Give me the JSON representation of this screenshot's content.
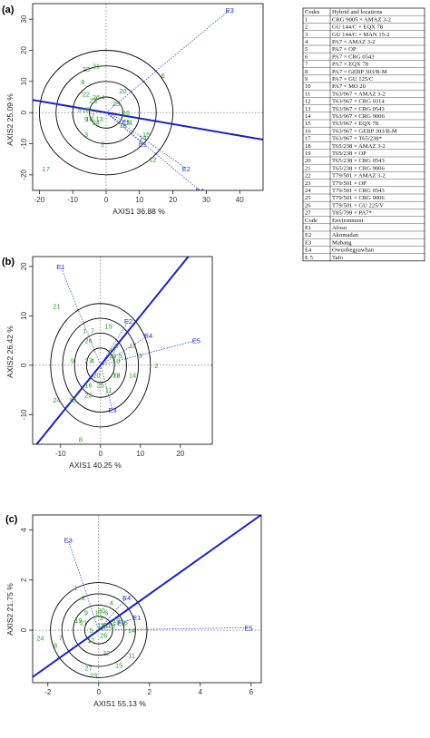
{
  "chart_data": [
    {
      "type": "scatter",
      "panel_label": "(a)",
      "xlabel": "AXIS1 36.88 %",
      "ylabel": "AXIS2 25.09 %",
      "xlim": [
        -22,
        47
      ],
      "ylim": [
        -25,
        35
      ],
      "xticks": [
        "-20",
        "-10",
        "0",
        "10",
        "20",
        "30",
        "40"
      ],
      "yticks": [
        "-20",
        "-10",
        "0",
        "10",
        "20",
        "30"
      ],
      "circle_radii": [
        5,
        10,
        15,
        20
      ],
      "axis_line": {
        "slope": -0.185
      },
      "genotypes": [
        {
          "label": "1",
          "x": -3,
          "y": 4
        },
        {
          "label": "2",
          "x": -1,
          "y": -10
        },
        {
          "label": "3",
          "x": -6,
          "y": -7
        },
        {
          "label": "4",
          "x": -1,
          "y": 5
        },
        {
          "label": "5",
          "x": -8,
          "y": 1
        },
        {
          "label": "6",
          "x": 17,
          "y": 12
        },
        {
          "label": "7",
          "x": -4,
          "y": -1
        },
        {
          "label": "8",
          "x": -7,
          "y": 10
        },
        {
          "label": "9",
          "x": -6,
          "y": -2
        },
        {
          "label": "10",
          "x": -5,
          "y": -2
        },
        {
          "label": "11",
          "x": 7,
          "y": -3
        },
        {
          "label": "12",
          "x": 14,
          "y": -15
        },
        {
          "label": "13",
          "x": -2,
          "y": -2
        },
        {
          "label": "14",
          "x": 11,
          "y": -8
        },
        {
          "label": "15",
          "x": 12,
          "y": -7
        },
        {
          "label": "16",
          "x": 6,
          "y": 0
        },
        {
          "label": "17",
          "x": -18,
          "y": -18
        },
        {
          "label": "18",
          "x": -6,
          "y": 1
        },
        {
          "label": "19",
          "x": 5,
          "y": -4
        },
        {
          "label": "20",
          "x": 5,
          "y": 7
        },
        {
          "label": "21",
          "x": -3,
          "y": 15
        },
        {
          "label": "22",
          "x": -6,
          "y": 6
        },
        {
          "label": "23",
          "x": -6,
          "y": 14
        },
        {
          "label": "24",
          "x": -3,
          "y": -3
        },
        {
          "label": "25",
          "x": 3,
          "y": 3
        },
        {
          "label": "26",
          "x": -3,
          "y": 5
        },
        {
          "label": "27",
          "x": -4,
          "y": 4
        }
      ],
      "environments": [
        {
          "label": "E1",
          "x": 11,
          "y": -10
        },
        {
          "label": "E2",
          "x": 24,
          "y": -18
        },
        {
          "label": "E3",
          "x": 37,
          "y": 33
        },
        {
          "label": "E4",
          "x": 28,
          "y": -25
        },
        {
          "label": "E5",
          "x": 6,
          "y": -3
        }
      ]
    },
    {
      "type": "scatter",
      "panel_label": "(b)",
      "xlabel": "AXIS1 40.25 %",
      "ylabel": "AXIS2 26.42 %",
      "xlim": [
        -17,
        28
      ],
      "ylim": [
        -16,
        22
      ],
      "xticks": [
        "-10",
        "0",
        "10",
        "20"
      ],
      "yticks": [
        "-10",
        "0",
        "10",
        "20"
      ],
      "circle_radii": [
        3.5,
        6.5,
        9.5,
        12.5
      ],
      "axis_line": {
        "slope": 1.0
      },
      "genotypes": [
        {
          "label": "1",
          "x": -4,
          "y": 7
        },
        {
          "label": "2",
          "x": 14,
          "y": 0
        },
        {
          "label": "3",
          "x": 10,
          "y": 2
        },
        {
          "label": "4",
          "x": -2,
          "y": 1
        },
        {
          "label": "5",
          "x": 5,
          "y": 2
        },
        {
          "label": "6",
          "x": 4,
          "y": 4
        },
        {
          "label": "7",
          "x": -2,
          "y": 7
        },
        {
          "label": "8",
          "x": -5,
          "y": -15
        },
        {
          "label": "9",
          "x": -7,
          "y": 1
        },
        {
          "label": "10",
          "x": -7,
          "y": -7
        },
        {
          "label": "11",
          "x": 2,
          "y": -5
        },
        {
          "label": "12",
          "x": 8,
          "y": 4
        },
        {
          "label": "13",
          "x": 4,
          "y": 1
        },
        {
          "label": "14",
          "x": 8,
          "y": -2
        },
        {
          "label": "15",
          "x": 2,
          "y": 8
        },
        {
          "label": "16",
          "x": -3,
          "y": -4
        },
        {
          "label": "17",
          "x": 3,
          "y": 3
        },
        {
          "label": "18",
          "x": 4,
          "y": -2
        },
        {
          "label": "19",
          "x": 3,
          "y": 2
        },
        {
          "label": "20",
          "x": -1,
          "y": -2
        },
        {
          "label": "21",
          "x": -11,
          "y": 12
        },
        {
          "label": "22",
          "x": 4,
          "y": -2
        },
        {
          "label": "23",
          "x": -3,
          "y": -6
        },
        {
          "label": "24",
          "x": -11,
          "y": -7
        },
        {
          "label": "25",
          "x": 0,
          "y": -4
        },
        {
          "label": "26",
          "x": -3,
          "y": 5
        },
        {
          "label": "27",
          "x": -3,
          "y": 1
        }
      ],
      "environments": [
        {
          "label": "E1",
          "x": -10,
          "y": 20
        },
        {
          "label": "E2",
          "x": 7,
          "y": 9
        },
        {
          "label": "E3",
          "x": 3,
          "y": -9
        },
        {
          "label": "E4",
          "x": 12,
          "y": 6
        },
        {
          "label": "E5",
          "x": 24,
          "y": 5
        }
      ]
    },
    {
      "type": "scatter",
      "panel_label": "(c)",
      "xlabel": "AXIS1 55.13 %",
      "ylabel": "AXIS2 21.75 %",
      "xlim": [
        -2.6,
        6.4
      ],
      "ylim": [
        -2.1,
        4.6
      ],
      "xticks": [
        "-2",
        "0",
        "2",
        "4",
        "6"
      ],
      "yticks": [
        "0",
        "2",
        "4"
      ],
      "circle_radii": [
        0.55,
        1.0,
        1.45,
        1.9
      ],
      "axis_line": {
        "slope": 0.72
      },
      "genotypes": [
        {
          "label": "1",
          "x": -0.9,
          "y": 1.7
        },
        {
          "label": "2",
          "x": -0.6,
          "y": 1.3
        },
        {
          "label": "3",
          "x": 0.1,
          "y": 0.5
        },
        {
          "label": "4",
          "x": 0.5,
          "y": 1.1
        },
        {
          "label": "5",
          "x": -0.3,
          "y": 0
        },
        {
          "label": "6",
          "x": 0.3,
          "y": 0.7
        },
        {
          "label": "7",
          "x": -1.5,
          "y": -0.3
        },
        {
          "label": "8",
          "x": -1.7,
          "y": -0.6
        },
        {
          "label": "9",
          "x": -0.5,
          "y": 0.7
        },
        {
          "label": "10",
          "x": 0.7,
          "y": 0.4
        },
        {
          "label": "11",
          "x": 1.3,
          "y": -1
        },
        {
          "label": "12",
          "x": -0.3,
          "y": -0.4
        },
        {
          "label": "13",
          "x": 0.1,
          "y": 0.2
        },
        {
          "label": "14",
          "x": 1.3,
          "y": 0
        },
        {
          "label": "15",
          "x": 0.8,
          "y": -1.4
        },
        {
          "label": "16",
          "x": 1,
          "y": 0.3
        },
        {
          "label": "17",
          "x": 0,
          "y": 0.7
        },
        {
          "label": "18",
          "x": 0.5,
          "y": 0.2
        },
        {
          "label": "19",
          "x": -0.8,
          "y": 0.4
        },
        {
          "label": "20",
          "x": 0.1,
          "y": 0.8
        },
        {
          "label": "21",
          "x": -0.6,
          "y": 0.3
        },
        {
          "label": "22",
          "x": 0.3,
          "y": -0.9
        },
        {
          "label": "23",
          "x": -0.2,
          "y": -1.8
        },
        {
          "label": "24",
          "x": -2.3,
          "y": -0.3
        },
        {
          "label": "25",
          "x": 0.2,
          "y": 0.2
        },
        {
          "label": "26",
          "x": 0.2,
          "y": -0.2
        },
        {
          "label": "27",
          "x": -0.4,
          "y": -1.5
        }
      ],
      "environments": [
        {
          "label": "E1",
          "x": 1.5,
          "y": 0.5
        },
        {
          "label": "E2",
          "x": 0.9,
          "y": 0.3
        },
        {
          "label": "E3",
          "x": -1.2,
          "y": 3.6
        },
        {
          "label": "E4",
          "x": 1.1,
          "y": 1.3
        },
        {
          "label": "E5",
          "x": 5.9,
          "y": 0.1
        }
      ]
    }
  ],
  "legend_table": {
    "header": [
      "Codes",
      "Hybrid and locations"
    ],
    "rows": [
      [
        "1",
        "CRG 9005 × AMAZ 3-2"
      ],
      [
        "2",
        "GU 144/C × EQX 78"
      ],
      [
        "3",
        "GU 144/C × MAN 15-2"
      ],
      [
        "4",
        "PA7 × AMAZ 3-2"
      ],
      [
        "5",
        "PA7 × OP"
      ],
      [
        "6",
        "PA7 × CRG 0543"
      ],
      [
        "7",
        "PA7 × EQX 78"
      ],
      [
        "8",
        "PA7 × GEBP 303/B-M"
      ],
      [
        "9",
        "PA7 × GU 125/C"
      ],
      [
        "10",
        "PA7 × MO 20"
      ],
      [
        "11",
        "T63/967 × AMAZ 3-2"
      ],
      [
        "12",
        "T63/967 × CRG 0314"
      ],
      [
        "13",
        "T63/967 × CRG 0543"
      ],
      [
        "14",
        "T63/967 × CRG 9006"
      ],
      [
        "15",
        "T63/967 × EQX 78"
      ],
      [
        "16",
        "T63/967 × GEBP 303/B-M"
      ],
      [
        "17",
        "T63/967 × T65/238*"
      ],
      [
        "18",
        "T65/238 × AMAZ 3-2"
      ],
      [
        "19",
        "T65/238 × OP"
      ],
      [
        "20",
        "T65/238 × CRG 0543"
      ],
      [
        "21",
        "T65/238 × CRG 9006"
      ],
      [
        "22",
        "T79/501 × AMAZ 3-2"
      ],
      [
        "23",
        "T79/501 × OP"
      ],
      [
        "24",
        "T79/501 × CRG 0543"
      ],
      [
        "25",
        "T79/501 × CRG 9006"
      ],
      [
        "26",
        "T79/501 × GU 225/V"
      ],
      [
        "27",
        "T85/799 × PA7*"
      ]
    ],
    "env_header": [
      "Code",
      "Environment"
    ],
    "env_rows": [
      [
        "E1",
        "Afosu"
      ],
      [
        "E2",
        "Akomadan"
      ],
      [
        "E3",
        "Mabang"
      ],
      [
        "E4",
        "Owuobegyawhan"
      ],
      [
        "E 5",
        "Tafo"
      ]
    ]
  },
  "colors": {
    "genotype": "#2a9d2a",
    "environment": "#1b2fd6",
    "axis_line": "#1a22c8",
    "circle": "#000000"
  }
}
